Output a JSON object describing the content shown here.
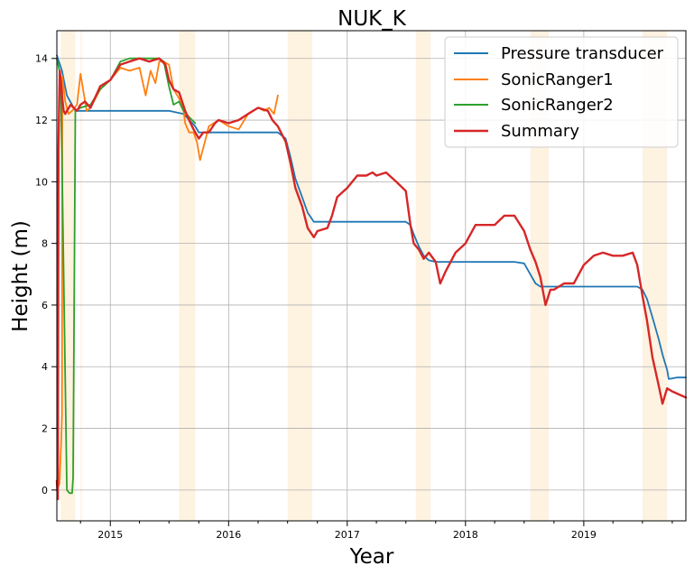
{
  "chart_data": {
    "type": "line",
    "title": "NUK_K",
    "xlabel": "Year",
    "ylabel": "Height (m)",
    "xlim": [
      "2014-07-20",
      "2019-11-12"
    ],
    "ylim": [
      -1.0,
      14.9
    ],
    "x_ticks": [
      "2015",
      "2016",
      "2017",
      "2018",
      "2019"
    ],
    "y_ticks": [
      0,
      2,
      4,
      6,
      8,
      10,
      12,
      14
    ],
    "grid": true,
    "legend_position": "top-right",
    "shaded_periods": [
      [
        "2014-08-01",
        "2014-09-15"
      ],
      [
        "2014-10-01",
        "2014-10-05"
      ],
      [
        "2015-08-01",
        "2015-09-20"
      ],
      [
        "2016-07-01",
        "2016-09-15"
      ],
      [
        "2017-08-01",
        "2017-09-15"
      ],
      [
        "2018-07-20",
        "2018-09-15"
      ],
      [
        "2019-07-01",
        "2019-09-15"
      ]
    ],
    "series": [
      {
        "name": "Pressure transducer",
        "color": "#1f77b4",
        "x": [
          "2014-07-20",
          "2014-08-05",
          "2014-08-20",
          "2014-09-15",
          "2014-10-15",
          "2015-01-01",
          "2015-04-01",
          "2015-07-01",
          "2015-08-15",
          "2015-09-20",
          "2015-10-01",
          "2016-01-01",
          "2016-04-01",
          "2016-06-01",
          "2016-06-25",
          "2016-07-10",
          "2016-07-25",
          "2016-08-15",
          "2016-09-01",
          "2016-09-20",
          "2016-10-15",
          "2017-01-01",
          "2017-04-01",
          "2017-07-01",
          "2017-07-15",
          "2017-07-25",
          "2017-08-10",
          "2017-08-25",
          "2017-09-10",
          "2017-10-01",
          "2018-01-01",
          "2018-04-01",
          "2018-06-01",
          "2018-07-01",
          "2018-07-20",
          "2018-08-05",
          "2018-08-20",
          "2018-09-15",
          "2019-01-01",
          "2019-04-01",
          "2019-06-15",
          "2019-07-01",
          "2019-07-15",
          "2019-08-01",
          "2019-08-20",
          "2019-09-01",
          "2019-09-15",
          "2019-09-20",
          "2019-10-15",
          "2019-11-12"
        ],
        "y": [
          14.1,
          13.6,
          12.8,
          12.3,
          12.3,
          12.3,
          12.3,
          12.3,
          12.2,
          11.8,
          11.6,
          11.6,
          11.6,
          11.6,
          11.4,
          10.8,
          10.1,
          9.5,
          9.0,
          8.7,
          8.7,
          8.7,
          8.7,
          8.7,
          8.6,
          8.3,
          7.9,
          7.6,
          7.45,
          7.4,
          7.4,
          7.4,
          7.4,
          7.35,
          7.0,
          6.7,
          6.6,
          6.6,
          6.6,
          6.6,
          6.6,
          6.5,
          6.2,
          5.6,
          4.9,
          4.4,
          3.9,
          3.6,
          3.65,
          3.65
        ]
      },
      {
        "name": "SonicRanger1",
        "color": "#ff7f0e",
        "x": [
          "2014-07-20",
          "2014-07-28",
          "2014-08-02",
          "2014-08-05",
          "2014-08-06",
          "2014-08-15",
          "2014-08-25",
          "2014-09-05",
          "2014-09-20",
          "2014-10-01",
          "2014-10-20",
          "2014-11-01",
          "2014-12-01",
          "2015-01-01",
          "2015-02-01",
          "2015-03-01",
          "2015-04-01",
          "2015-04-20",
          "2015-05-05",
          "2015-05-20",
          "2015-06-01",
          "2015-06-15",
          "2015-07-01",
          "2015-07-15",
          "2015-08-01",
          "2015-08-15",
          "2015-08-20",
          "2015-09-01",
          "2015-09-15",
          "2015-09-25",
          "2015-10-05",
          "2015-10-20",
          "2015-11-01",
          "2015-12-01",
          "2016-01-01",
          "2016-02-01",
          "2016-03-01",
          "2016-04-01",
          "2016-04-20",
          "2016-05-05",
          "2016-05-20",
          "2016-06-01"
        ],
        "y": [
          0.0,
          0.2,
          1.5,
          2.4,
          13.4,
          12.6,
          12.2,
          12.3,
          12.5,
          13.5,
          12.3,
          12.4,
          13.0,
          13.3,
          13.7,
          13.6,
          13.7,
          12.8,
          13.6,
          13.2,
          13.9,
          13.9,
          13.8,
          13.0,
          12.7,
          12.3,
          11.9,
          11.6,
          11.6,
          11.3,
          10.7,
          11.3,
          11.8,
          12.0,
          11.8,
          11.7,
          12.2,
          12.4,
          12.3,
          12.4,
          12.2,
          12.8
        ]
      },
      {
        "name": "SonicRanger2",
        "color": "#2ca02c",
        "x": [
          "2014-07-20",
          "2014-08-01",
          "2014-08-20",
          "2014-08-28",
          "2014-09-05",
          "2014-09-08",
          "2014-09-15",
          "2014-10-01",
          "2014-11-01",
          "2014-12-01",
          "2015-01-01",
          "2015-02-01",
          "2015-03-01",
          "2015-04-01",
          "2015-05-01",
          "2015-06-01",
          "2015-06-15",
          "2015-07-01",
          "2015-07-15",
          "2015-08-01",
          "2015-08-15",
          "2015-09-01",
          "2015-09-20"
        ],
        "y": [
          14.0,
          13.4,
          0.0,
          -0.1,
          -0.1,
          0.4,
          12.3,
          12.4,
          12.5,
          13.0,
          13.3,
          13.9,
          14.0,
          14.0,
          14.0,
          14.0,
          13.9,
          13.1,
          12.5,
          12.6,
          12.3,
          12.1,
          11.9
        ]
      },
      {
        "name": "Summary",
        "color": "#d62728",
        "x": [
          "2014-07-20",
          "2014-07-23",
          "2014-07-25",
          "2014-07-27",
          "2014-07-29",
          "2014-08-01",
          "2014-08-05",
          "2014-08-10",
          "2014-08-15",
          "2014-08-20",
          "2014-09-01",
          "2014-09-10",
          "2014-09-20",
          "2014-10-01",
          "2014-10-15",
          "2014-11-01",
          "2014-12-01",
          "2015-01-01",
          "2015-02-01",
          "2015-03-01",
          "2015-04-01",
          "2015-05-01",
          "2015-06-01",
          "2015-06-20",
          "2015-07-01",
          "2015-07-15",
          "2015-08-01",
          "2015-08-20",
          "2015-09-01",
          "2015-09-15",
          "2015-10-01",
          "2015-10-15",
          "2015-11-01",
          "2015-11-20",
          "2015-12-01",
          "2016-01-01",
          "2016-02-01",
          "2016-03-01",
          "2016-04-01",
          "2016-05-01",
          "2016-05-15",
          "2016-06-01",
          "2016-06-25",
          "2016-07-10",
          "2016-07-25",
          "2016-08-15",
          "2016-09-01",
          "2016-09-20",
          "2016-10-01",
          "2016-11-01",
          "2016-11-15",
          "2016-12-01",
          "2017-01-01",
          "2017-02-01",
          "2017-03-01",
          "2017-03-20",
          "2017-04-01",
          "2017-05-01",
          "2017-06-01",
          "2017-07-01",
          "2017-07-15",
          "2017-07-25",
          "2017-08-10",
          "2017-08-25",
          "2017-09-10",
          "2017-10-01",
          "2017-10-15",
          "2017-11-01",
          "2017-12-01",
          "2018-01-01",
          "2018-02-01",
          "2018-03-01",
          "2018-04-01",
          "2018-05-01",
          "2018-06-01",
          "2018-07-01",
          "2018-07-20",
          "2018-08-05",
          "2018-08-20",
          "2018-09-05",
          "2018-09-20",
          "2018-10-01",
          "2018-11-01",
          "2018-12-01",
          "2019-01-01",
          "2019-02-01",
          "2019-03-01",
          "2019-04-01",
          "2019-05-01",
          "2019-06-01",
          "2019-06-15",
          "2019-07-01",
          "2019-07-15",
          "2019-08-01",
          "2019-08-20",
          "2019-09-01",
          "2019-09-15",
          "2019-10-01",
          "2019-11-12"
        ],
        "y": [
          0.3,
          -0.3,
          11.0,
          12.5,
          13.6,
          13.3,
          12.8,
          12.3,
          12.2,
          12.3,
          12.5,
          12.4,
          12.3,
          12.5,
          12.6,
          12.4,
          13.1,
          13.3,
          13.8,
          13.9,
          14.0,
          13.9,
          14.0,
          13.8,
          13.3,
          13.0,
          12.9,
          12.3,
          12.0,
          11.7,
          11.4,
          11.6,
          11.6,
          11.9,
          12.0,
          11.9,
          12.0,
          12.2,
          12.4,
          12.3,
          12.0,
          11.8,
          11.3,
          10.6,
          9.8,
          9.2,
          8.5,
          8.2,
          8.4,
          8.5,
          8.9,
          9.5,
          9.8,
          10.2,
          10.2,
          10.3,
          10.2,
          10.3,
          10.0,
          9.7,
          8.6,
          8.0,
          7.8,
          7.5,
          7.7,
          7.4,
          6.7,
          7.1,
          7.7,
          8.0,
          8.6,
          8.6,
          8.6,
          8.9,
          8.9,
          8.4,
          7.8,
          7.4,
          6.9,
          6.0,
          6.5,
          6.5,
          6.7,
          6.7,
          7.3,
          7.6,
          7.7,
          7.6,
          7.6,
          7.7,
          7.3,
          6.3,
          5.5,
          4.3,
          3.4,
          2.8,
          3.3,
          3.2,
          3.0
        ]
      }
    ]
  }
}
